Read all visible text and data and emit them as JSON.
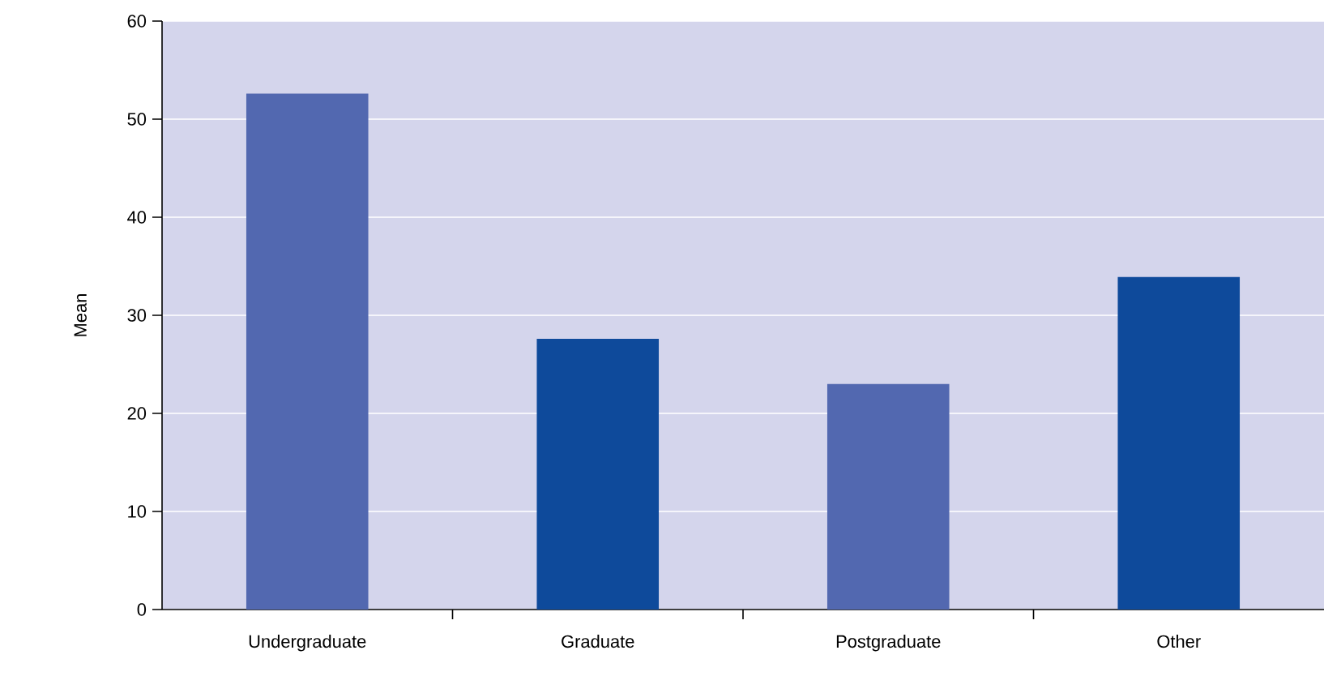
{
  "chart_data": {
    "type": "bar",
    "ylabel": "Mean",
    "categories": [
      "Undergraduate",
      "Graduate",
      "Postgraduate",
      "Other"
    ],
    "values": [
      52.6,
      27.6,
      23.0,
      33.9
    ],
    "colors": [
      "#5268b0",
      "#0e4a9b",
      "#5268b0",
      "#0e4a9b"
    ],
    "ylim": [
      0,
      60
    ],
    "yticks": [
      0,
      10,
      20,
      30,
      40,
      50,
      60
    ],
    "grid": "y"
  }
}
